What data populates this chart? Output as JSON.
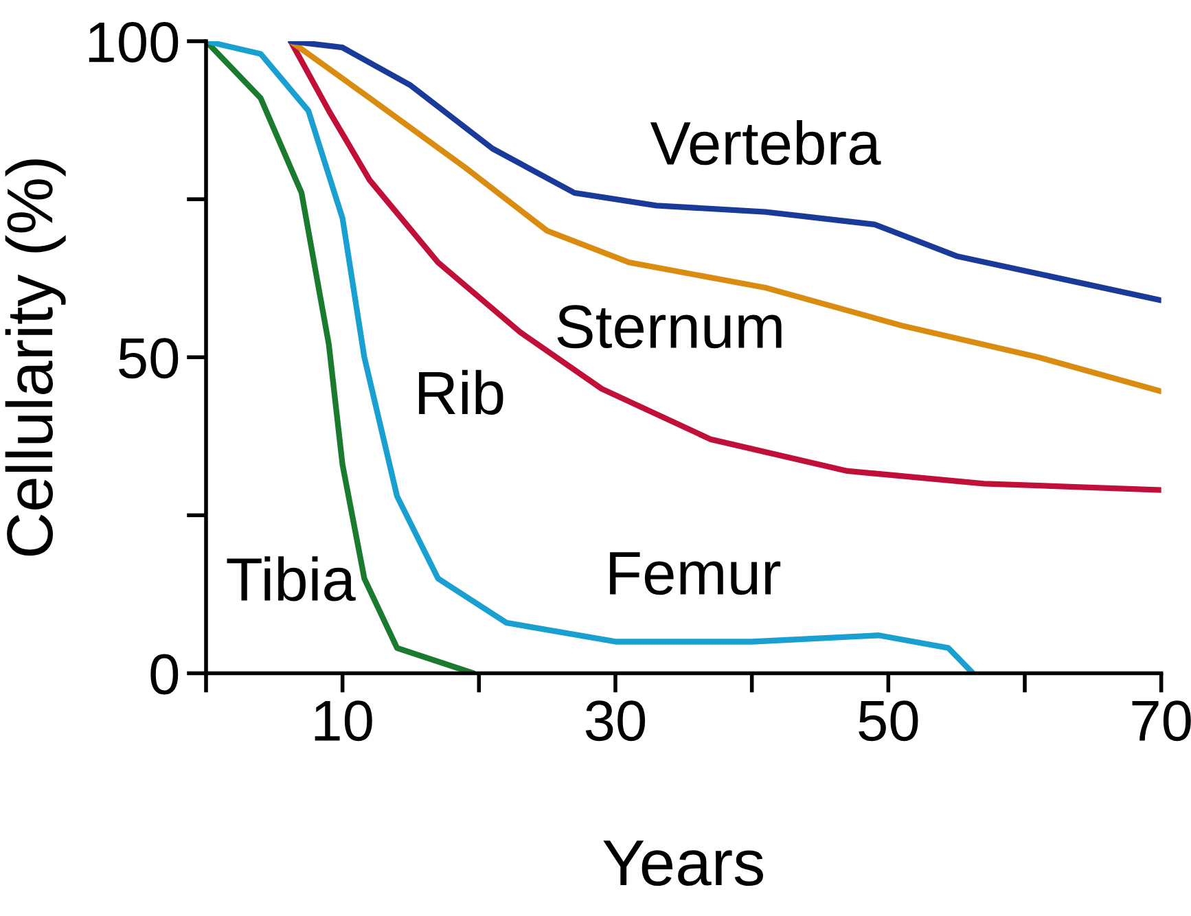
{
  "chart_data": {
    "type": "line",
    "xlabel": "Years",
    "ylabel": "Cellularity (%)",
    "xlim": [
      0,
      70
    ],
    "ylim": [
      0,
      100
    ],
    "xticks": [
      {
        "value": 0,
        "label": null
      },
      10,
      {
        "value": 20,
        "label": null
      },
      30,
      {
        "value": 40,
        "label": null
      },
      50,
      {
        "value": 60,
        "label": null
      },
      70
    ],
    "yticks": [
      0,
      {
        "value": 25,
        "label": null
      },
      50,
      {
        "value": 75,
        "label": null
      },
      100
    ],
    "grid": false,
    "legend": false,
    "marker": "none",
    "line_style": "solid",
    "series": [
      {
        "name": "Tibia",
        "color": "#1a7a2e",
        "x": [
          0,
          4,
          7,
          9,
          10,
          11.6,
          14,
          19.6
        ],
        "values": [
          100,
          91,
          76,
          52,
          33,
          15,
          4,
          0
        ]
      },
      {
        "name": "Femur",
        "color": "#1aa0d0",
        "x": [
          0,
          4,
          7.5,
          10,
          11.6,
          14,
          17,
          22,
          30,
          40,
          49.3,
          54.4,
          56.2
        ],
        "values": [
          100,
          98,
          89,
          72,
          50,
          28,
          15,
          8,
          5,
          5,
          6,
          4,
          0
        ]
      },
      {
        "name": "Rib",
        "color": "#c0103a",
        "x": [
          6.2,
          9,
          12,
          17,
          23,
          29,
          37,
          47,
          57,
          70
        ],
        "values": [
          100,
          89,
          78,
          65,
          54,
          45,
          37,
          32,
          30,
          29
        ]
      },
      {
        "name": "Sternum",
        "color": "#d98c10",
        "x": [
          6.2,
          12,
          19,
          25,
          31,
          41,
          51,
          61,
          70
        ],
        "values": [
          100,
          91,
          80,
          70,
          65,
          61,
          55,
          50,
          44.6
        ]
      },
      {
        "name": "Vertebra",
        "color": "#1a3a9a",
        "x": [
          6.2,
          10,
          15,
          21,
          27,
          33,
          41,
          49,
          55,
          70
        ],
        "values": [
          100,
          99,
          93,
          83,
          76,
          74,
          73,
          71,
          66,
          59
        ]
      }
    ]
  }
}
